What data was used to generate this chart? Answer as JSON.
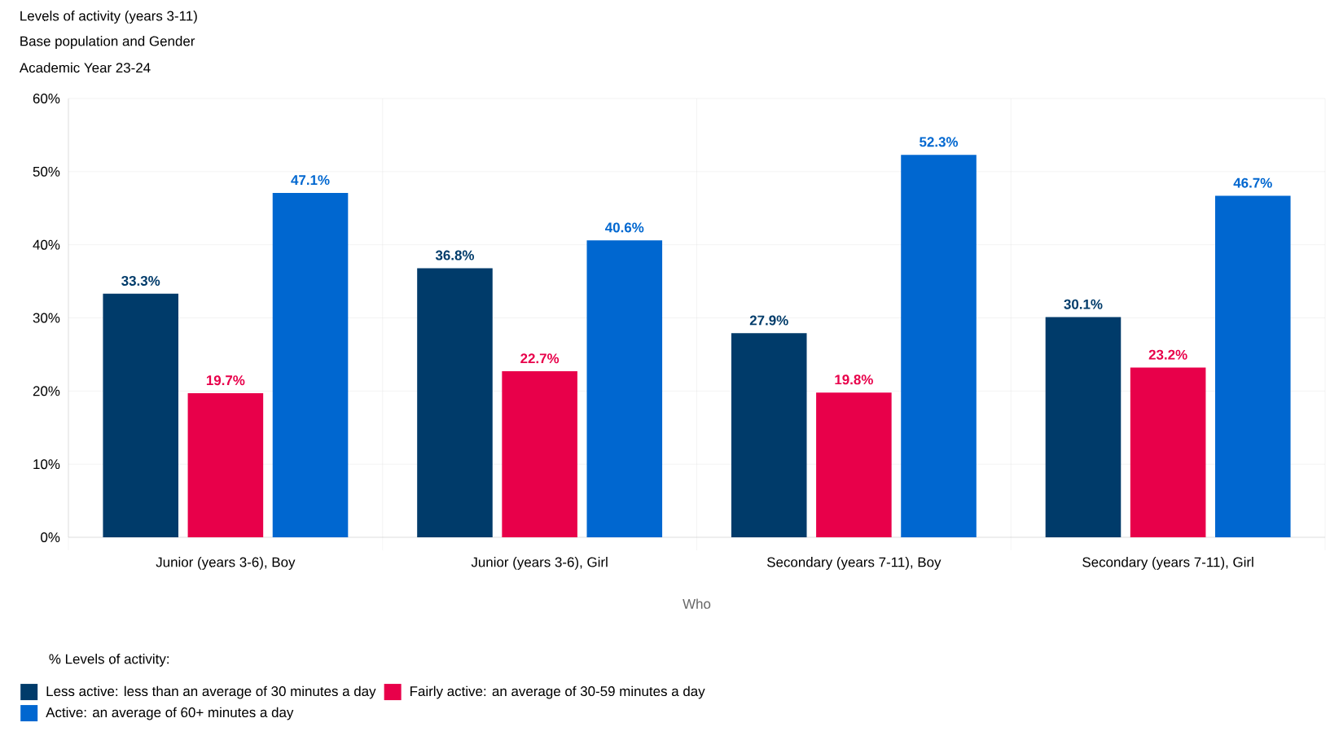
{
  "chart_data": {
    "type": "bar",
    "title": "Levels of activity (years 3-11)",
    "subtitle": "Base population and Gender",
    "annotations": [
      "Academic Year 23-24"
    ],
    "xlabel": "Who",
    "legend_title": "% Levels of activity:",
    "categories": [
      "Junior (years 3-6), Boy",
      "Junior (years 3-6), Girl",
      "Secondary (years 7-11), Boy",
      "Secondary (years 7-11), Girl"
    ],
    "series": [
      {
        "name": "Less active: less than an average of 30 minutes a day",
        "color": "#003b6a",
        "values": [
          33.3,
          36.8,
          27.9,
          30.1
        ],
        "value_labels": [
          "33.3%",
          "36.8%",
          "27.9%",
          "30.1%"
        ]
      },
      {
        "name": "Fairly active: an average of 30-59 minutes a day",
        "color": "#e8004a",
        "values": [
          19.7,
          22.7,
          19.8,
          23.2
        ],
        "value_labels": [
          "19.7%",
          "22.7%",
          "19.8%",
          "23.2%"
        ]
      },
      {
        "name": "Active: an average of 60+ minutes a day",
        "color": "#0067d0",
        "values": [
          47.1,
          40.6,
          52.3,
          46.7
        ],
        "value_labels": [
          "47.1%",
          "40.6%",
          "52.3%",
          "46.7%"
        ]
      }
    ],
    "ylim": [
      0,
      60
    ],
    "yticks": [
      {
        "value": 0,
        "label": "0%"
      },
      {
        "value": 10,
        "label": "10%"
      },
      {
        "value": 20,
        "label": "20%"
      },
      {
        "value": 30,
        "label": "30%"
      },
      {
        "value": 40,
        "label": "40%"
      },
      {
        "value": 50,
        "label": "50%"
      },
      {
        "value": 60,
        "label": "60%"
      }
    ],
    "grid": true,
    "legend": "bottom"
  }
}
